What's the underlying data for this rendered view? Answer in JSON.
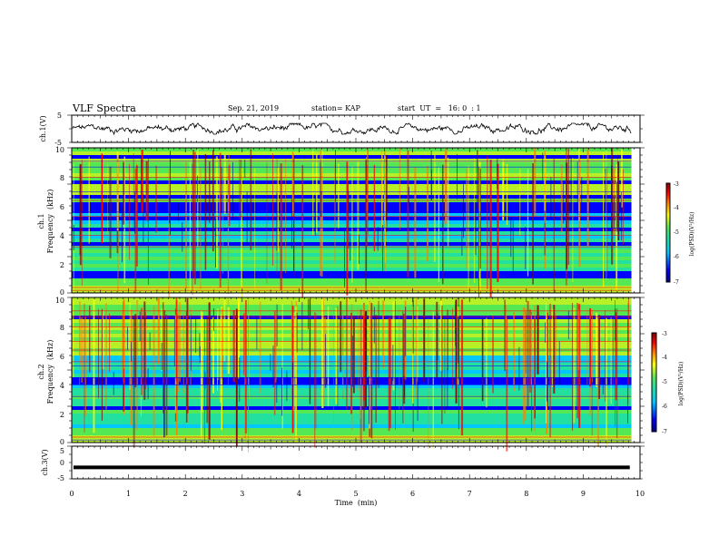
{
  "header": {
    "title": "VLF Spectra",
    "date": "Sep. 21, 2019",
    "station": "station= KAP",
    "start_ut": "start  UT  =   16: 0  : 1"
  },
  "colors": {
    "spectrogram_colormap": [
      "#00007f",
      "#0000ff",
      "#00c8ff",
      "#22e0a0",
      "#55e855",
      "#b8f028",
      "#ffff00",
      "#ff7f00",
      "#ff0000",
      "#7f0000"
    ],
    "trace": "#000000"
  },
  "chart_data": [
    {
      "type": "line",
      "name": "ch1-waveform",
      "ylabel": "ch.1(V)",
      "ylim": [
        -5,
        5
      ],
      "yticks": [
        "5",
        "-5"
      ],
      "xlim": [
        0,
        10
      ],
      "approx_range": [
        -2.0,
        2.0
      ]
    },
    {
      "type": "heatmap",
      "name": "ch1-spectrogram",
      "ylabel_line1": "ch.1",
      "ylabel_line2": "Frequency  (kHz)",
      "ylim": [
        0,
        10
      ],
      "yticks": [
        "0",
        "2",
        "4",
        "6",
        "8",
        "10"
      ],
      "xlim": [
        0,
        10
      ],
      "colorbar": {
        "label": "log(PSD)(V²/Hz)",
        "range": [
          -7,
          -3
        ],
        "ticks": [
          "-3",
          "-4",
          "-5",
          "-6",
          "-7"
        ]
      }
    },
    {
      "type": "heatmap",
      "name": "ch2-spectrogram",
      "ylabel_line1": "ch.2",
      "ylabel_line2": "Frequency  (kHz)",
      "ylim": [
        0,
        10
      ],
      "yticks": [
        "0",
        "2",
        "4",
        "6",
        "8",
        "10"
      ],
      "xlim": [
        0,
        10
      ],
      "colorbar": {
        "label": "log(PSD)(V²/Hz)",
        "range": [
          -7,
          -3
        ],
        "ticks": [
          "-3",
          "-4",
          "-5",
          "-6",
          "-7"
        ]
      }
    },
    {
      "type": "line",
      "name": "ch3-waveform",
      "ylabel": "ch.3(V)",
      "ylim": [
        -5,
        5
      ],
      "yticks": [
        "5",
        "0",
        "-5"
      ],
      "xlim": [
        0,
        10
      ],
      "constant_value": -1.5,
      "xlabel": "Time  (min)",
      "xticks": [
        "0",
        "1",
        "2",
        "3",
        "4",
        "5",
        "6",
        "7",
        "8",
        "9",
        "10"
      ]
    }
  ]
}
